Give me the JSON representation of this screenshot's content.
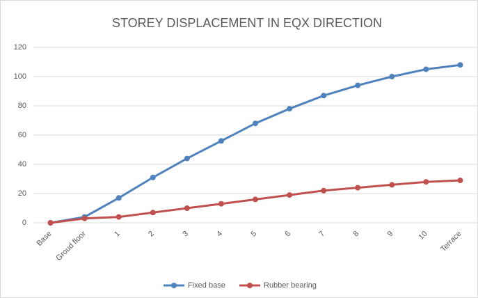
{
  "chart_data": {
    "type": "line",
    "title": "STOREY DISPLACEMENT IN EQX DIRECTION",
    "categories": [
      "Base",
      "Groud floor",
      "1",
      "2",
      "3",
      "4",
      "5",
      "6",
      "7",
      "8",
      "9",
      "10",
      "Terrace"
    ],
    "series": [
      {
        "name": "Fixed base",
        "color": "#4f81bd",
        "values": [
          0,
          4,
          17,
          31,
          44,
          56,
          68,
          78,
          87,
          94,
          100,
          105,
          108
        ]
      },
      {
        "name": "Rubber bearing",
        "color": "#c0504d",
        "values": [
          0,
          3,
          4,
          7,
          10,
          13,
          16,
          19,
          22,
          24,
          26,
          28,
          29
        ]
      }
    ],
    "ylim": [
      0,
      120
    ],
    "yticks": [
      0,
      20,
      40,
      60,
      80,
      100,
      120
    ],
    "grid": true,
    "legend": "bottom"
  }
}
